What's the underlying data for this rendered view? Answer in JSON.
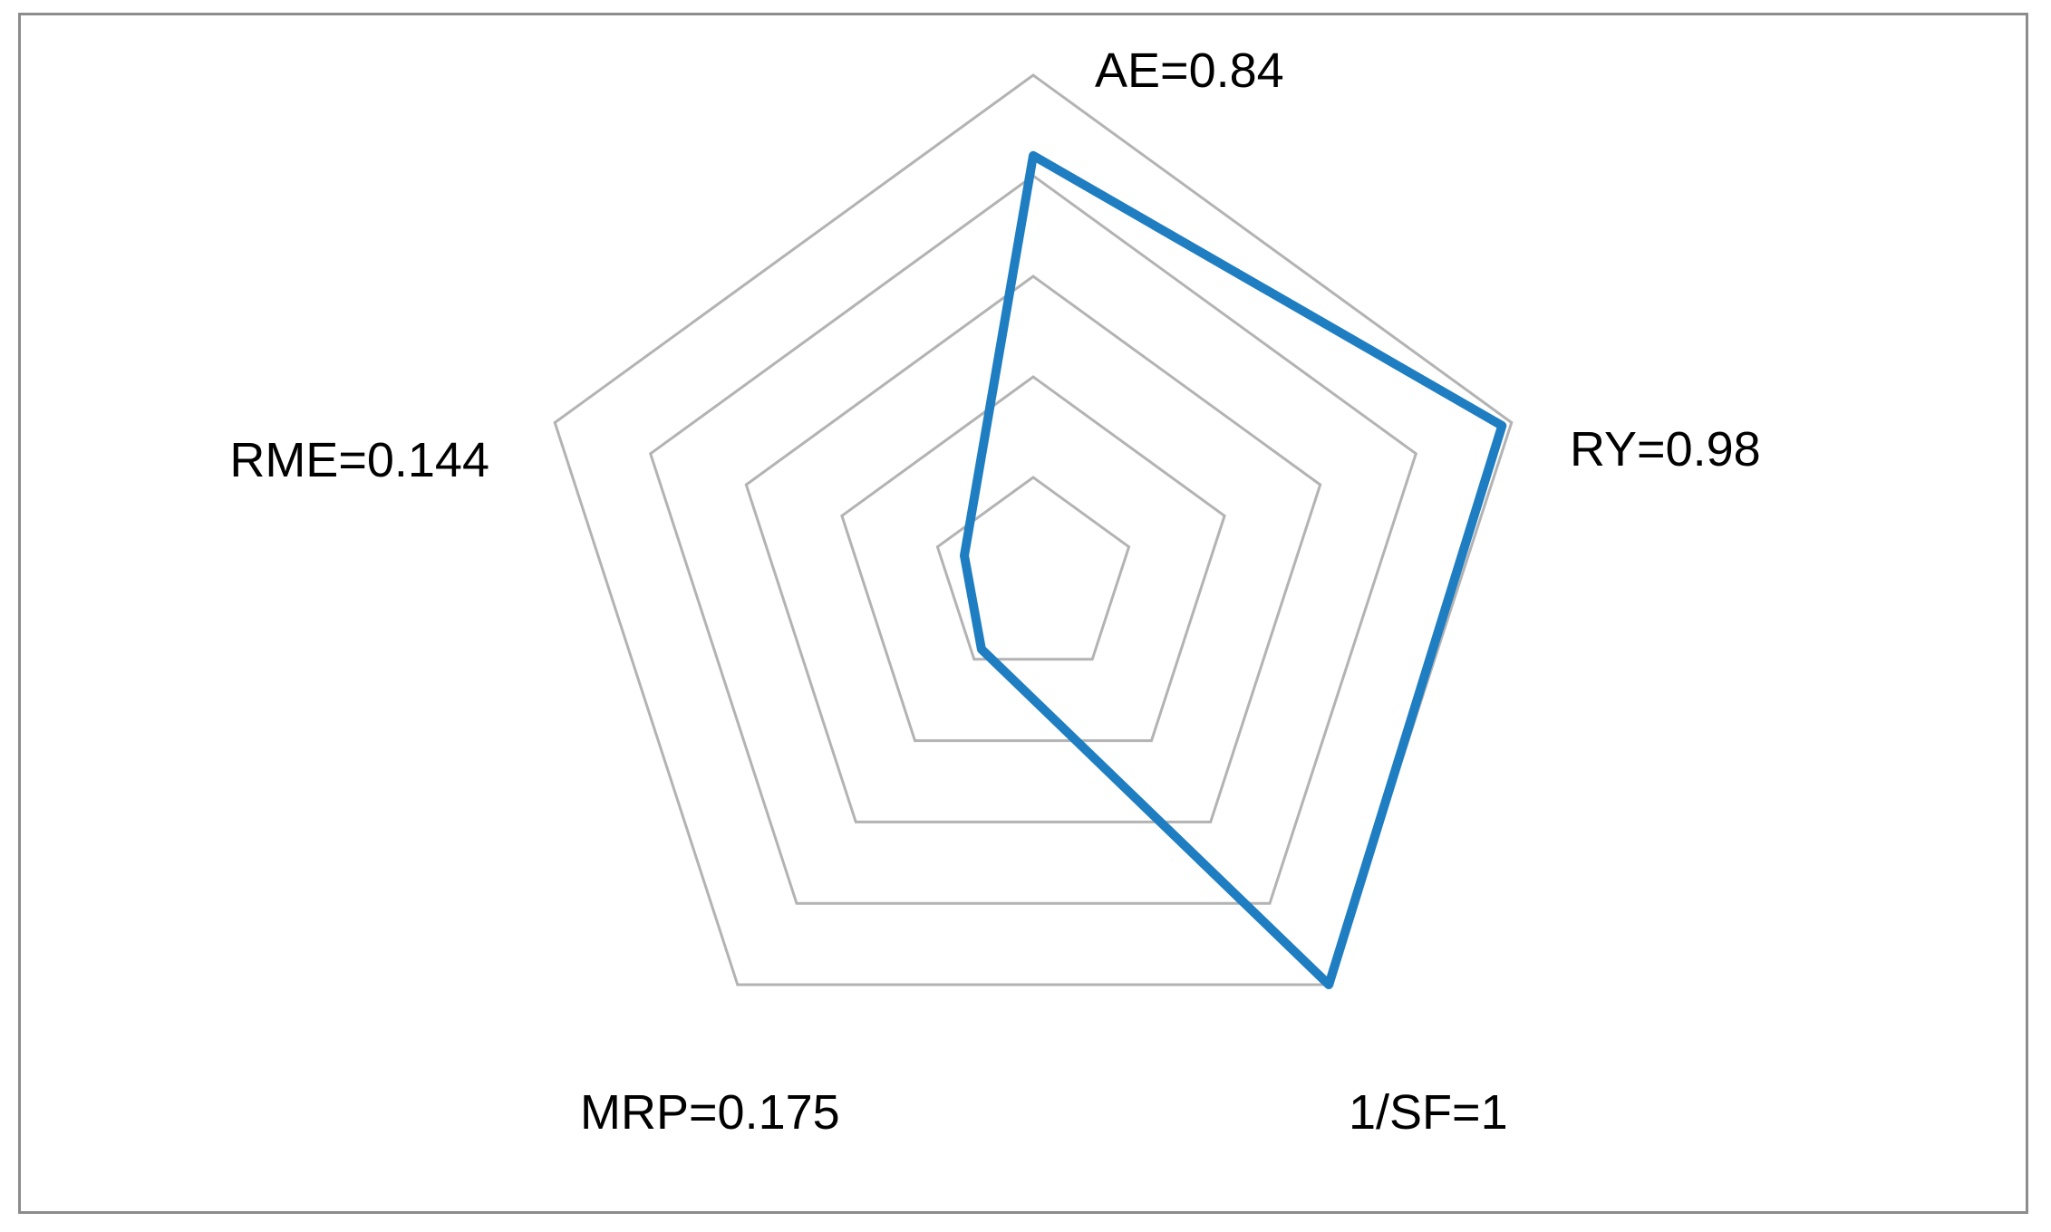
{
  "chart_data": {
    "type": "radar",
    "axes": [
      "AE=0.84",
      "RY=0.98",
      "1/SF=1",
      "MRP=0.175",
      "RME=0.144"
    ],
    "values": [
      0.84,
      0.98,
      1,
      0.175,
      0.144
    ],
    "range": [
      0,
      1
    ],
    "grid_levels": [
      0.2,
      0.4,
      0.6,
      0.8,
      1.0
    ],
    "grid": true,
    "legend": "none",
    "colors": {
      "series": "#1f7ec1",
      "grid": "#b3b3b3",
      "frame": "#8c8c8c"
    }
  }
}
